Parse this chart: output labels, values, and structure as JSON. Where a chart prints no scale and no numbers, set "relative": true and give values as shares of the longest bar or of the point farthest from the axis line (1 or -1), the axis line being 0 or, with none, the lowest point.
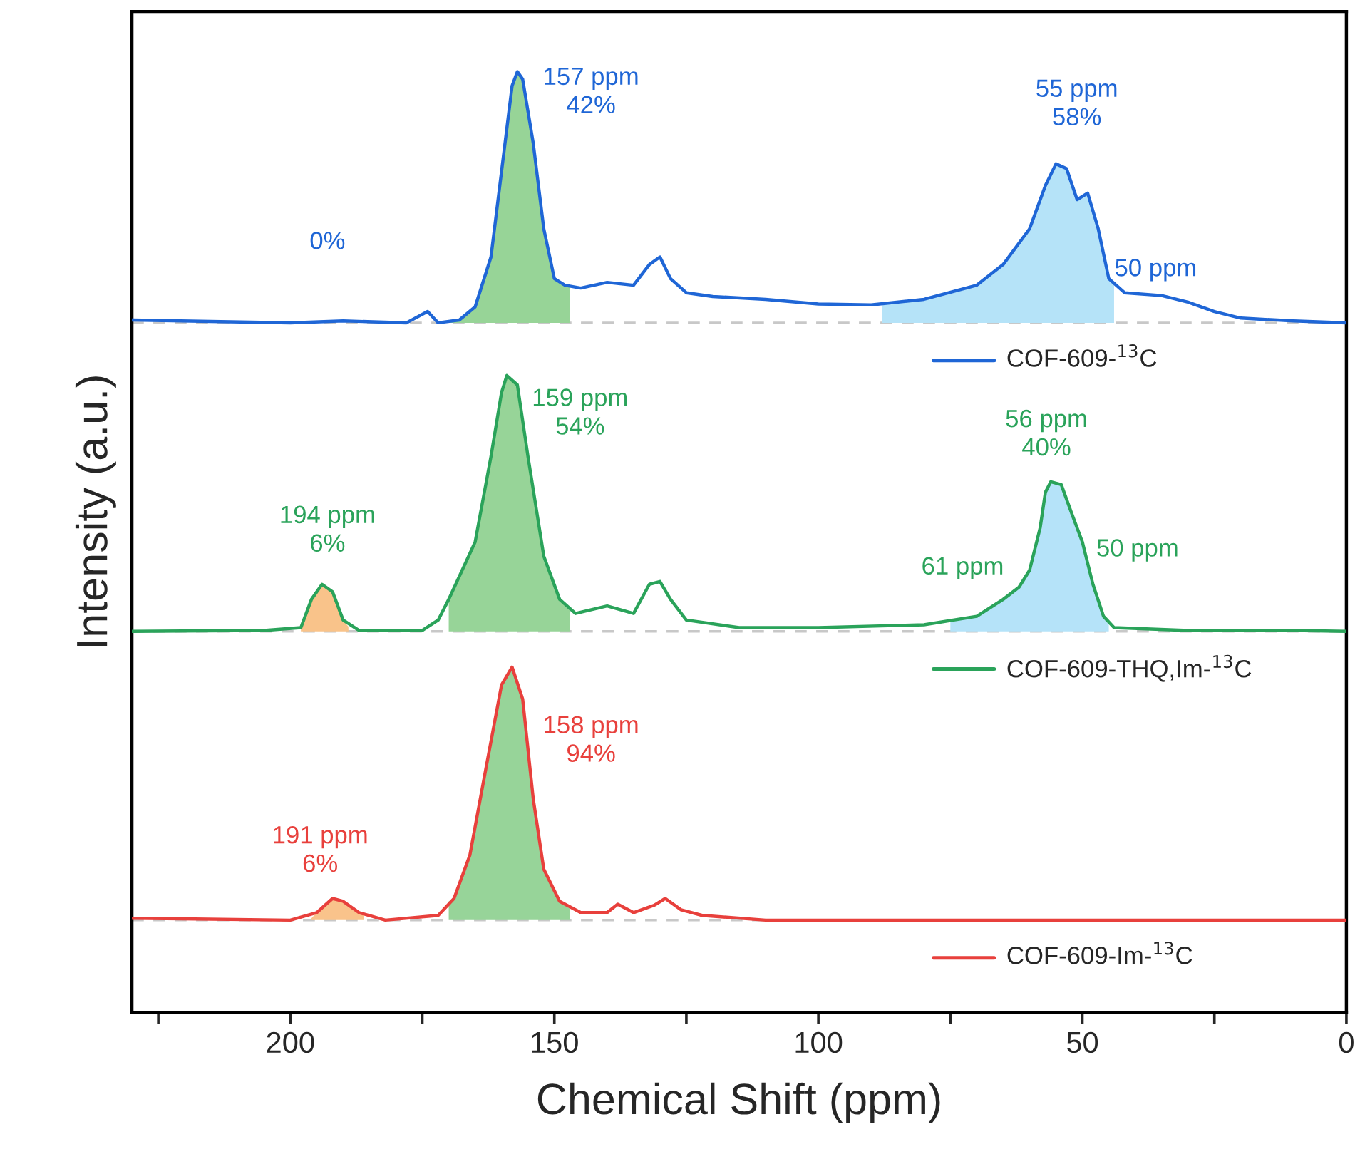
{
  "chart_data": {
    "type": "line",
    "relative": true,
    "xlabel": "Chemical Shift (ppm)",
    "ylabel": "Intensity (a.u.)",
    "xlim": [
      230,
      0
    ],
    "xticks": [
      {
        "value": 225,
        "label": null
      },
      200,
      {
        "value": 175,
        "label": null
      },
      150,
      {
        "value": 125,
        "label": null
      },
      100,
      {
        "value": 75,
        "label": null
      },
      50,
      {
        "value": 25,
        "label": null
      },
      0
    ],
    "tick_labels": "x",
    "legend": "right",
    "series": [
      {
        "name": "COF-609-$^{13}$C",
        "color": "#1f66d6",
        "x": [
          230,
          200,
          190,
          178,
          174,
          172,
          168,
          165,
          162,
          160,
          158,
          157,
          156,
          154,
          152,
          150,
          148,
          145,
          140,
          135,
          132,
          130,
          128,
          125,
          120,
          110,
          100,
          90,
          80,
          70,
          65,
          60,
          57,
          55,
          53,
          51,
          49,
          47,
          45,
          42,
          35,
          30,
          25,
          20,
          10,
          0
        ],
        "values": [
          0.736,
          0.733,
          0.735,
          0.733,
          0.745,
          0.733,
          0.736,
          0.75,
          0.803,
          0.894,
          0.985,
          1.0,
          0.992,
          0.924,
          0.833,
          0.78,
          0.773,
          0.77,
          0.776,
          0.773,
          0.795,
          0.803,
          0.78,
          0.765,
          0.761,
          0.758,
          0.753,
          0.752,
          0.758,
          0.773,
          0.795,
          0.833,
          0.879,
          0.902,
          0.897,
          0.864,
          0.871,
          0.833,
          0.78,
          0.765,
          0.762,
          0.755,
          0.745,
          0.738,
          0.735,
          0.733
        ]
      },
      {
        "name": "COF-609-THQ,Im-$^{13}$C",
        "color": "#2aa35a",
        "x": [
          230,
          205,
          198,
          196,
          194,
          192,
          190,
          187,
          175,
          172,
          170,
          165,
          162,
          160,
          159,
          157,
          155,
          152,
          149,
          146,
          140,
          135,
          132,
          130,
          128,
          125,
          115,
          100,
          80,
          70,
          65,
          62,
          60,
          58,
          57,
          56,
          54,
          52,
          50,
          48,
          46,
          44,
          30,
          10,
          0
        ],
        "values": [
          0.405,
          0.406,
          0.409,
          0.439,
          0.455,
          0.447,
          0.417,
          0.406,
          0.406,
          0.417,
          0.439,
          0.5,
          0.591,
          0.659,
          0.677,
          0.667,
          0.591,
          0.485,
          0.439,
          0.424,
          0.432,
          0.424,
          0.455,
          0.458,
          0.439,
          0.417,
          0.409,
          0.409,
          0.412,
          0.421,
          0.439,
          0.452,
          0.47,
          0.515,
          0.553,
          0.564,
          0.561,
          0.53,
          0.5,
          0.455,
          0.421,
          0.409,
          0.406,
          0.406,
          0.405
        ]
      },
      {
        "name": "COF-609-Im-$^{13}$C",
        "color": "#e8403c",
        "x": [
          230,
          200,
          195,
          192,
          190,
          187,
          182,
          172,
          169,
          166,
          163,
          160,
          158,
          156,
          154,
          152,
          149,
          145,
          140,
          138,
          135,
          131,
          129,
          126,
          122,
          110,
          50,
          0
        ],
        "values": [
          0.1,
          0.098,
          0.106,
          0.121,
          0.118,
          0.106,
          0.098,
          0.103,
          0.121,
          0.167,
          0.258,
          0.348,
          0.367,
          0.333,
          0.227,
          0.152,
          0.118,
          0.106,
          0.106,
          0.115,
          0.106,
          0.114,
          0.121,
          0.109,
          0.103,
          0.098,
          0.098,
          0.098
        ]
      },
      {
        "type": "area",
        "color": "#97d497",
        "x": [
          170,
          168,
          165,
          162,
          160,
          158,
          157,
          156,
          154,
          152,
          150,
          148,
          147
        ],
        "values": [
          0.735,
          0.736,
          0.75,
          0.803,
          0.894,
          0.985,
          1.0,
          0.992,
          0.924,
          0.833,
          0.78,
          0.773,
          0.772
        ]
      },
      {
        "type": "area",
        "color": "#b5e3f8",
        "x": [
          88,
          80,
          70,
          65,
          60,
          57,
          55,
          53,
          51,
          49,
          47,
          45,
          44
        ],
        "values": [
          0.752,
          0.758,
          0.773,
          0.795,
          0.833,
          0.879,
          0.902,
          0.897,
          0.864,
          0.871,
          0.833,
          0.78,
          0.775
        ]
      },
      {
        "type": "area",
        "color": "#f9c38a",
        "x": [
          198,
          196,
          194,
          192,
          190,
          189
        ],
        "values": [
          0.409,
          0.439,
          0.455,
          0.447,
          0.417,
          0.41
        ]
      },
      {
        "type": "area",
        "color": "#97d498",
        "x": [
          170,
          165,
          162,
          160,
          159,
          157,
          155,
          152,
          149,
          147
        ],
        "values": [
          0.439,
          0.5,
          0.591,
          0.659,
          0.677,
          0.667,
          0.591,
          0.485,
          0.439,
          0.43
        ]
      },
      {
        "type": "area",
        "color": "#b5e3f9",
        "x": [
          75,
          70,
          65,
          62,
          60,
          58,
          57,
          56,
          54,
          52,
          50,
          48,
          46,
          45
        ],
        "values": [
          0.415,
          0.421,
          0.439,
          0.452,
          0.47,
          0.515,
          0.553,
          0.564,
          0.561,
          0.53,
          0.5,
          0.455,
          0.421,
          0.412
        ]
      },
      {
        "type": "area",
        "color": "#f9c38b",
        "x": [
          196,
          195,
          192,
          190,
          187,
          186
        ],
        "values": [
          0.1,
          0.106,
          0.121,
          0.118,
          0.106,
          0.103
        ]
      },
      {
        "type": "area",
        "color": "#97d499",
        "x": [
          170,
          169,
          166,
          163,
          160,
          158,
          156,
          154,
          152,
          149,
          147
        ],
        "values": [
          0.118,
          0.121,
          0.167,
          0.258,
          0.348,
          0.367,
          0.333,
          0.227,
          0.152,
          0.118,
          0.11
        ]
      }
    ],
    "ref_lines": [
      {
        "axis": "y",
        "value": 0.733,
        "color": "#c8c8c8",
        "line_style": "dashed"
      },
      {
        "axis": "y",
        "value": 0.405,
        "color": "#c8c8c8",
        "line_style": "dashed"
      },
      {
        "axis": "y",
        "value": 0.098,
        "color": "#c8c8c8",
        "line_style": "dashed"
      }
    ],
    "annotations": [
      "157 ppm\n42%",
      "55 ppm\n58%",
      "50 ppm",
      "0%",
      "159 ppm\n54%",
      "56 ppm\n40%",
      "61 ppm",
      "50 ppm",
      "194 ppm\n6%",
      "158 ppm\n94%",
      "191 ppm\n6%"
    ]
  }
}
